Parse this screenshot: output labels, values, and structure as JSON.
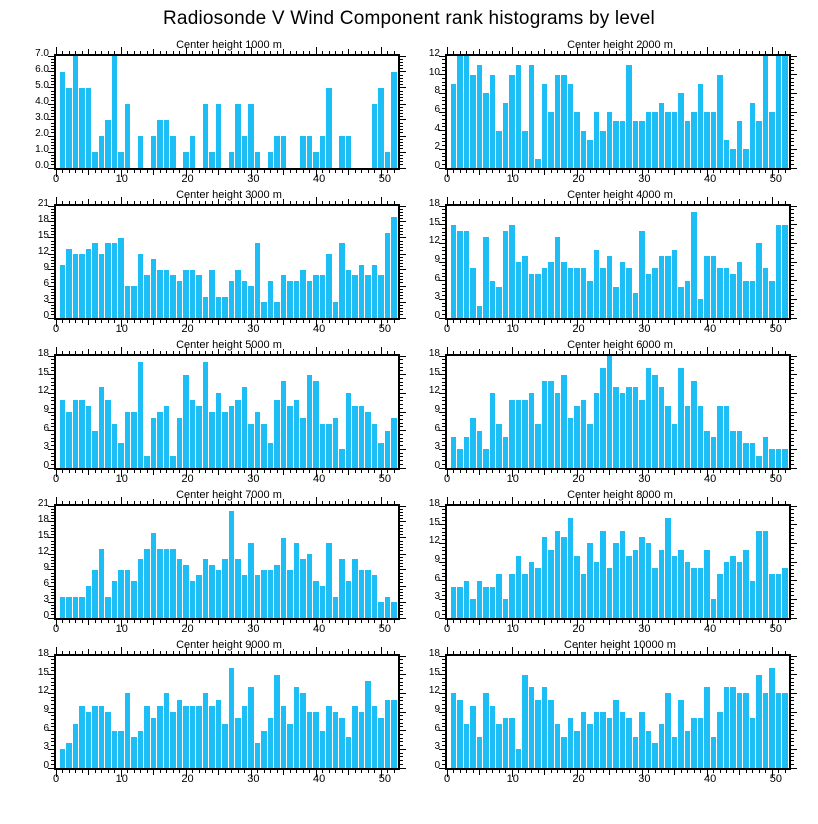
{
  "page_title": "Radiosonde V Wind Component rank histograms by level",
  "defaults": {
    "bar_color": "#1CBEF5",
    "axis_color": "#000000",
    "x_first_rank": 1,
    "n_bins": 52,
    "xlim": [
      0,
      52.6
    ],
    "xtick_values": [
      0,
      10,
      20,
      30,
      40,
      50
    ],
    "xtick_labels": [
      "0",
      "10",
      "20",
      "30",
      "40",
      "50"
    ],
    "legend": "none",
    "grid": "off"
  },
  "chart_data": [
    {
      "type": "bar",
      "title": "Center height 1000 m",
      "ylim": [
        0,
        7
      ],
      "ytick_labels": [
        "0.0",
        "1.0",
        "2.0",
        "3.0",
        "4.0",
        "5.0",
        "6.0",
        "7.0"
      ],
      "values": [
        6,
        5,
        7,
        5,
        5,
        1,
        2,
        3,
        7,
        1,
        4,
        0,
        2,
        0,
        2,
        3,
        3,
        2,
        0,
        1,
        2,
        0,
        4,
        1,
        4,
        0,
        1,
        4,
        2,
        4,
        1,
        0,
        1,
        2,
        2,
        0,
        0,
        2,
        2,
        1,
        2,
        5,
        0,
        2,
        2,
        0,
        0,
        0,
        4,
        5,
        1,
        6
      ]
    },
    {
      "type": "bar",
      "title": "Center height 2000 m",
      "ylim": [
        0,
        12
      ],
      "ytick_labels": [
        "0",
        "2",
        "4",
        "6",
        "8",
        "10",
        "12"
      ],
      "values": [
        9,
        12,
        12,
        10,
        11,
        8,
        10,
        4,
        7,
        10,
        11,
        4,
        11,
        1,
        9,
        6,
        10,
        10,
        9,
        6,
        4,
        3,
        6,
        4,
        6,
        5,
        5,
        11,
        5,
        5,
        6,
        6,
        7,
        6,
        6,
        8,
        5,
        6,
        9,
        6,
        6,
        10,
        3,
        2,
        5,
        2,
        7,
        5,
        12,
        6,
        12,
        12
      ]
    },
    {
      "type": "bar",
      "title": "Center height 3000 m",
      "ylim": [
        0,
        21
      ],
      "ytick_labels": [
        "0",
        "3",
        "6",
        "9",
        "12",
        "15",
        "18",
        "21"
      ],
      "values": [
        10,
        13,
        12,
        12,
        13,
        14,
        12,
        14,
        14,
        15,
        6,
        6,
        12,
        8,
        11,
        9,
        9,
        8,
        7,
        9,
        9,
        8,
        4,
        9,
        4,
        4,
        7,
        9,
        7,
        6,
        14,
        3,
        7,
        3,
        8,
        7,
        7,
        9,
        7,
        8,
        8,
        12,
        3,
        14,
        9,
        8,
        10,
        8,
        10,
        8,
        16,
        19
      ]
    },
    {
      "type": "bar",
      "title": "Center height 4000 m",
      "ylim": [
        0,
        18
      ],
      "ytick_labels": [
        "0",
        "3",
        "6",
        "9",
        "12",
        "15",
        "18"
      ],
      "values": [
        15,
        14,
        14,
        8,
        2,
        13,
        6,
        5,
        14,
        15,
        9,
        10,
        7,
        7,
        8,
        9,
        13,
        9,
        8,
        8,
        8,
        6,
        11,
        8,
        10,
        5,
        9,
        8,
        4,
        14,
        7,
        8,
        10,
        10,
        11,
        5,
        6,
        17,
        3,
        10,
        10,
        8,
        8,
        7,
        9,
        6,
        6,
        12,
        8,
        6,
        15,
        15
      ]
    },
    {
      "type": "bar",
      "title": "Center height 5000 m",
      "ylim": [
        0,
        18
      ],
      "ytick_labels": [
        "0",
        "3",
        "6",
        "9",
        "12",
        "15",
        "18"
      ],
      "values": [
        11,
        9,
        11,
        11,
        10,
        6,
        13,
        11,
        7,
        4,
        9,
        9,
        17,
        2,
        8,
        9,
        10,
        2,
        8,
        15,
        11,
        10,
        17,
        9,
        12,
        9,
        10,
        11,
        13,
        7,
        9,
        7,
        4,
        11,
        14,
        10,
        11,
        8,
        15,
        14,
        7,
        7,
        8,
        3,
        12,
        10,
        10,
        9,
        7,
        4,
        6,
        8
      ]
    },
    {
      "type": "bar",
      "title": "Center height 6000 m",
      "ylim": [
        0,
        18
      ],
      "ytick_labels": [
        "0",
        "3",
        "6",
        "9",
        "12",
        "15",
        "18"
      ],
      "values": [
        5,
        3,
        5,
        8,
        6,
        3,
        12,
        7,
        5,
        11,
        11,
        11,
        12,
        7,
        14,
        14,
        12,
        15,
        8,
        10,
        11,
        7,
        12,
        16,
        18,
        13,
        12,
        13,
        13,
        11,
        16,
        15,
        13,
        10,
        7,
        16,
        10,
        14,
        10,
        6,
        5,
        10,
        10,
        6,
        6,
        4,
        4,
        2,
        5,
        3,
        3,
        3
      ]
    },
    {
      "type": "bar",
      "title": "Center height 7000 m",
      "ylim": [
        0,
        21
      ],
      "ytick_labels": [
        "0",
        "3",
        "6",
        "9",
        "12",
        "15",
        "18",
        "21"
      ],
      "values": [
        4,
        4,
        4,
        4,
        6,
        9,
        13,
        4,
        7,
        9,
        9,
        7,
        11,
        13,
        16,
        13,
        13,
        13,
        11,
        10,
        7,
        8,
        11,
        10,
        9,
        11,
        20,
        11,
        8,
        14,
        8,
        9,
        9,
        10,
        15,
        9,
        14,
        11,
        12,
        7,
        6,
        14,
        4,
        11,
        7,
        11,
        9,
        9,
        8,
        3,
        4,
        3
      ]
    },
    {
      "type": "bar",
      "title": "Center height 8000 m",
      "ylim": [
        0,
        18
      ],
      "ytick_labels": [
        "0",
        "3",
        "6",
        "9",
        "12",
        "15",
        "18"
      ],
      "values": [
        5,
        5,
        6,
        3,
        6,
        5,
        5,
        7,
        3,
        7,
        10,
        7,
        9,
        8,
        13,
        11,
        14,
        13,
        16,
        10,
        7,
        12,
        9,
        14,
        8,
        12,
        14,
        10,
        11,
        13,
        12,
        8,
        11,
        16,
        10,
        11,
        9,
        8,
        8,
        11,
        3,
        7,
        9,
        10,
        9,
        11,
        6,
        14,
        14,
        7,
        7,
        8
      ]
    },
    {
      "type": "bar",
      "title": "Center height 9000 m",
      "ylim": [
        0,
        18
      ],
      "ytick_labels": [
        "0",
        "3",
        "6",
        "9",
        "12",
        "15",
        "18"
      ],
      "values": [
        3,
        4,
        7,
        10,
        9,
        10,
        10,
        9,
        6,
        6,
        12,
        5,
        6,
        10,
        8,
        10,
        12,
        9,
        11,
        10,
        10,
        10,
        12,
        10,
        11,
        7,
        16,
        8,
        10,
        13,
        4,
        6,
        8,
        15,
        10,
        7,
        13,
        12,
        9,
        9,
        6,
        10,
        9,
        8,
        5,
        10,
        9,
        14,
        10,
        8,
        11,
        11
      ]
    },
    {
      "type": "bar",
      "title": "Center height 10000 m",
      "ylim": [
        0,
        18
      ],
      "ytick_labels": [
        "0",
        "3",
        "6",
        "9",
        "12",
        "15",
        "18"
      ],
      "values": [
        12,
        11,
        7,
        10,
        5,
        12,
        10,
        7,
        8,
        8,
        3,
        15,
        13,
        11,
        13,
        11,
        7,
        5,
        8,
        6,
        9,
        7,
        9,
        9,
        8,
        11,
        9,
        8,
        5,
        9,
        6,
        4,
        7,
        12,
        5,
        11,
        6,
        8,
        8,
        13,
        5,
        9,
        13,
        13,
        12,
        12,
        8,
        15,
        12,
        16,
        12,
        12
      ]
    }
  ]
}
